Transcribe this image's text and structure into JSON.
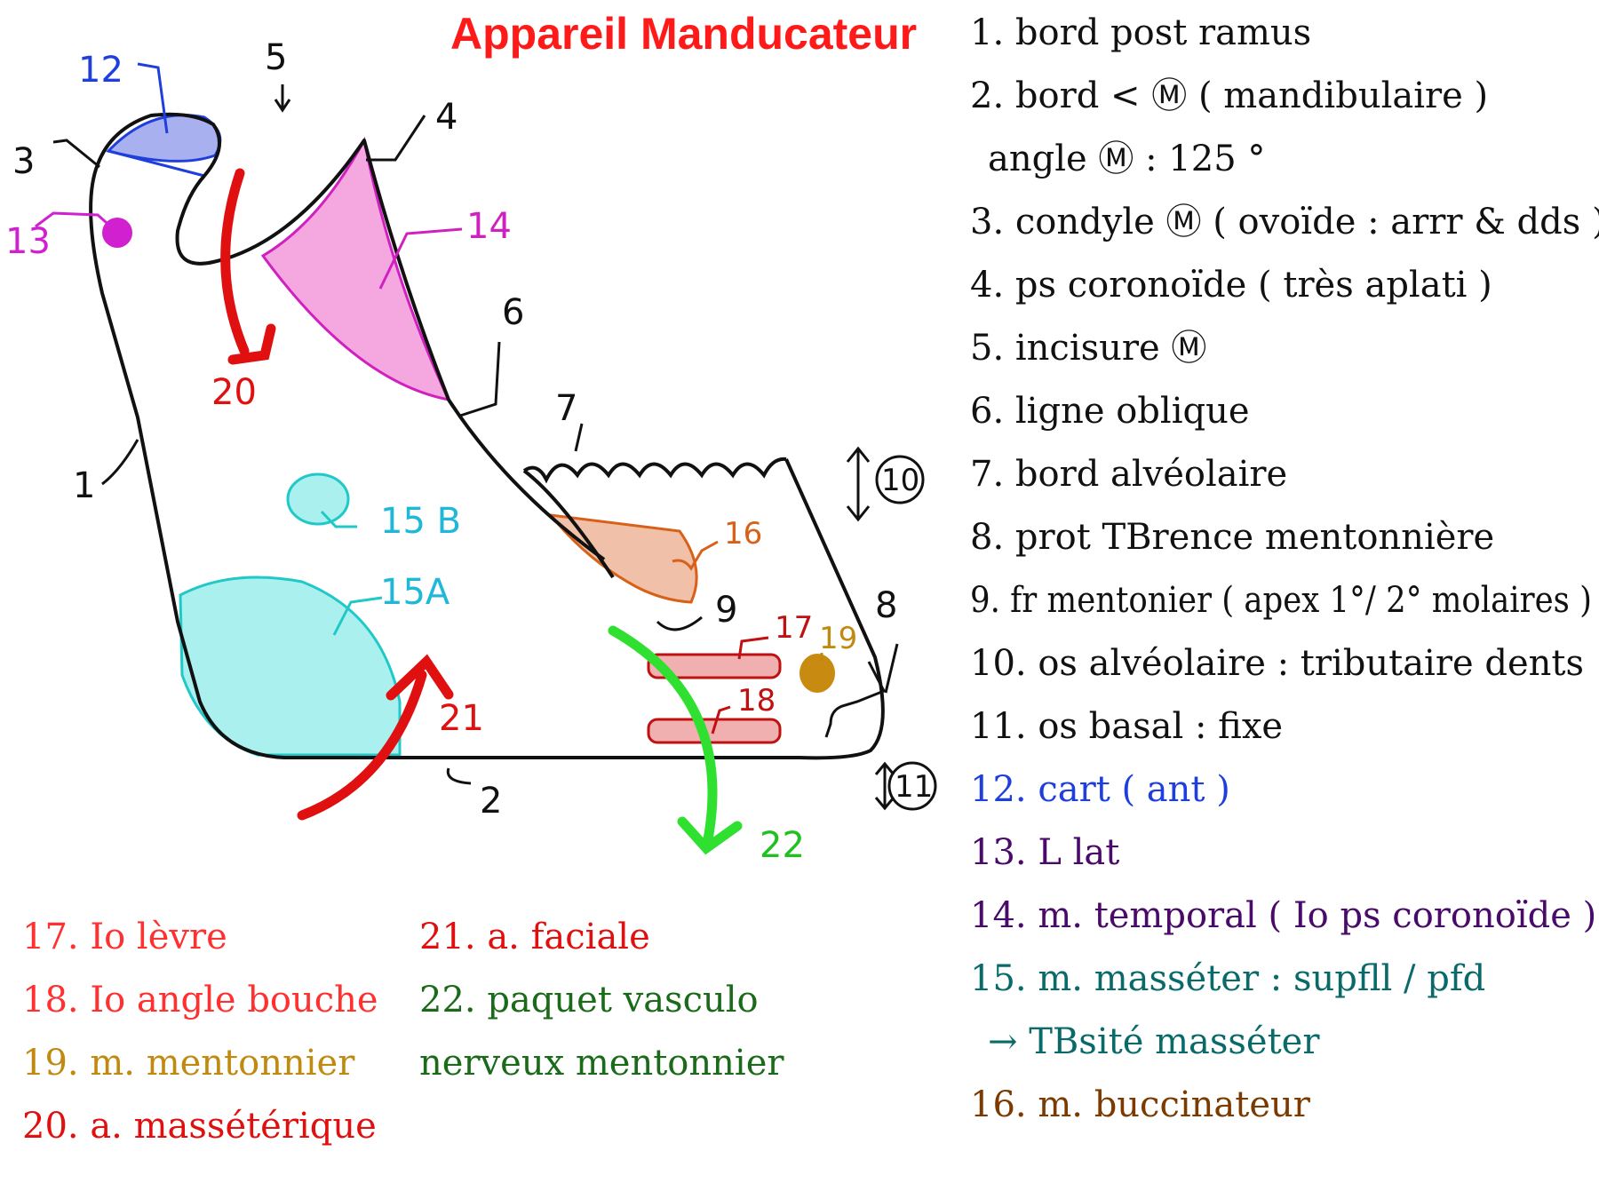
{
  "title": "Appareil Manducateur",
  "diagram_labels": {
    "l1": "1",
    "l2": "2",
    "l3": "3",
    "l4": "4",
    "l5": "5",
    "l6": "6",
    "l7": "7",
    "l8": "8",
    "l9": "9",
    "l10": "10",
    "l11": "11",
    "l12": "12",
    "l13": "13",
    "l14": "14",
    "l15a": "15A",
    "l15b": "15 B",
    "l16": "16",
    "l17": "17",
    "l18": "18",
    "l19": "19",
    "l20": "20",
    "l21": "21",
    "l22": "22"
  },
  "legend_right": [
    {
      "text": "1. bord post ramus",
      "color": "#111111"
    },
    {
      "text": "2. bord < Ⓜ ( mandibulaire )",
      "color": "#111111"
    },
    {
      "text": "angle Ⓜ : 125 °",
      "color": "#111111"
    },
    {
      "text": "3. condyle Ⓜ  ( ovoïde : arrr & dds )",
      "color": "#111111"
    },
    {
      "text": "4. ps coronoïde ( très aplati )",
      "color": "#111111"
    },
    {
      "text": "5. incisure Ⓜ",
      "color": "#111111"
    },
    {
      "text": "6. ligne oblique",
      "color": "#111111"
    },
    {
      "text": "7. bord alvéolaire",
      "color": "#111111"
    },
    {
      "text": "8. prot TBrence mentonnière",
      "color": "#111111"
    },
    {
      "text": "9. fr mentonier ( apex 1°/ 2° molaires )",
      "color": "#111111"
    },
    {
      "text": "10. os alvéolaire : tributaire dents",
      "color": "#111111"
    },
    {
      "text": "11. os basal : fixe",
      "color": "#111111"
    },
    {
      "text": "12. cart ( ant )",
      "color": "#1f3fdd"
    },
    {
      "text": "13. L   lat",
      "color": "#4a0a6a"
    },
    {
      "text": "14. m. temporal ( Io ps coronoïde )",
      "color": "#4a0a6a"
    },
    {
      "text": "15. m. masséter : supfll / pfd",
      "color": "#0a6a6a"
    },
    {
      "text": "→ TBsité masséter",
      "color": "#0a6a6a"
    },
    {
      "text": "16. m. buccinateur",
      "color": "#7a3a00"
    }
  ],
  "legend_left": [
    {
      "text": "17. Io lèvre",
      "color": "#ff3030"
    },
    {
      "text": "18. Io angle bouche",
      "color": "#ff3030"
    },
    {
      "text": "19. m. mentonnier",
      "color": "#c08a10"
    },
    {
      "text": "20. a. massétérique",
      "color": "#e01010"
    }
  ],
  "legend_mid": [
    {
      "text": "21. a. faciale",
      "color": "#e01010"
    },
    {
      "text": "22. paquet vasculo",
      "color": "#1a6a1a"
    },
    {
      "text": "nerveux mentonnier",
      "color": "#1a6a1a"
    }
  ],
  "colors": {
    "cartilage": "#a8b0f0",
    "temporal": "#f5a8e0",
    "masseter": "#aaf0ee",
    "buccinator": "#f0c0a8",
    "lip": "#f0b0b0",
    "mentalis": "#c88a10",
    "artery": "#e01010",
    "nerve": "#30e030",
    "ligament": "#d020d0"
  }
}
